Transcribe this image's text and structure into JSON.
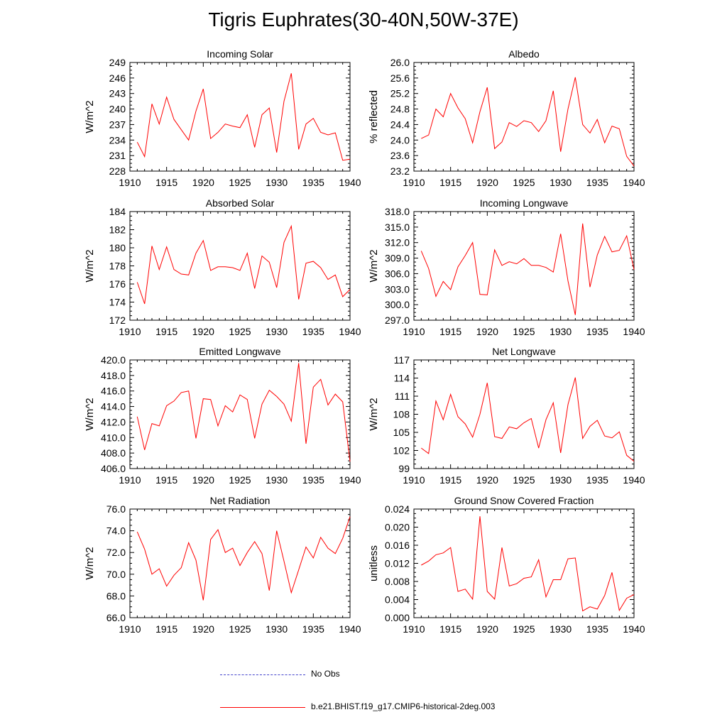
{
  "page": {
    "title": "Tigris Euphrates(30-40N,50W-37E)"
  },
  "legend": [
    {
      "label": "No Obs",
      "color": "#4444cc",
      "dash": "dashed"
    },
    {
      "label": "b.e21.BHIST.f19_g17.CMIP6-historical-2deg.003",
      "color": "#ff0000",
      "dash": "solid"
    }
  ],
  "chart_data": [
    {
      "type": "line",
      "title": "Incoming Solar",
      "xlabel": "",
      "ylabel": "W/m^2",
      "xlim": [
        1910,
        1940
      ],
      "ylim": [
        228,
        249
      ],
      "xticks": [
        "1910",
        "1915",
        "1920",
        "1925",
        "1930",
        "1935",
        "1940"
      ],
      "yticks": [
        "228",
        "231",
        "234",
        "237",
        "240",
        "243",
        "246",
        "249"
      ],
      "series": [
        {
          "color": "#ff0000",
          "x": [
            1911,
            1912,
            1913,
            1914,
            1915,
            1916,
            1917,
            1918,
            1919,
            1920,
            1921,
            1922,
            1923,
            1924,
            1925,
            1926,
            1927,
            1928,
            1929,
            1930,
            1931,
            1932,
            1933,
            1934,
            1935,
            1936,
            1937,
            1938,
            1939,
            1940
          ],
          "values": [
            233.6,
            230.8,
            241.0,
            237.1,
            242.3,
            238.0,
            236.0,
            234.0,
            239.6,
            243.9,
            234.3,
            235.5,
            237.1,
            236.7,
            236.4,
            238.9,
            232.6,
            238.9,
            240.2,
            231.6,
            241.5,
            246.9,
            232.2,
            237.1,
            238.2,
            235.5,
            235.0,
            235.4,
            230.1,
            230.3
          ]
        }
      ]
    },
    {
      "type": "line",
      "title": "Albedo",
      "xlabel": "",
      "ylabel": "% reflected",
      "xlim": [
        1910,
        1940
      ],
      "ylim": [
        23.2,
        26.0
      ],
      "xticks": [
        "1910",
        "1915",
        "1920",
        "1925",
        "1930",
        "1935",
        "1940"
      ],
      "yticks": [
        "23.2",
        "23.6",
        "24.0",
        "24.4",
        "24.8",
        "25.2",
        "25.6",
        "26.0"
      ],
      "series": [
        {
          "color": "#ff0000",
          "x": [
            1911,
            1912,
            1913,
            1914,
            1915,
            1916,
            1917,
            1918,
            1919,
            1920,
            1921,
            1922,
            1923,
            1924,
            1925,
            1926,
            1927,
            1928,
            1929,
            1930,
            1931,
            1932,
            1933,
            1934,
            1935,
            1936,
            1937,
            1938,
            1939,
            1940
          ],
          "values": [
            24.04,
            24.13,
            24.8,
            24.6,
            25.2,
            24.83,
            24.55,
            23.93,
            24.73,
            25.36,
            23.78,
            23.95,
            24.45,
            24.35,
            24.5,
            24.45,
            24.22,
            24.5,
            25.27,
            23.7,
            24.8,
            25.62,
            24.4,
            24.18,
            24.53,
            23.93,
            24.36,
            24.29,
            23.58,
            23.33
          ]
        }
      ]
    },
    {
      "type": "line",
      "title": "Absorbed Solar",
      "xlabel": "",
      "ylabel": "W/m^2",
      "xlim": [
        1910,
        1940
      ],
      "ylim": [
        172,
        184
      ],
      "xticks": [
        "1910",
        "1915",
        "1920",
        "1925",
        "1930",
        "1935",
        "1940"
      ],
      "yticks": [
        "172",
        "174",
        "176",
        "178",
        "180",
        "182",
        "184"
      ],
      "series": [
        {
          "color": "#ff0000",
          "x": [
            1911,
            1912,
            1913,
            1914,
            1915,
            1916,
            1917,
            1918,
            1919,
            1920,
            1921,
            1922,
            1923,
            1924,
            1925,
            1926,
            1927,
            1928,
            1929,
            1930,
            1931,
            1932,
            1933,
            1934,
            1935,
            1936,
            1937,
            1938,
            1939,
            1940
          ],
          "values": [
            176.2,
            173.8,
            180.2,
            177.6,
            180.1,
            177.6,
            177.1,
            177.0,
            179.4,
            180.8,
            177.5,
            177.9,
            177.9,
            177.8,
            177.5,
            179.4,
            175.5,
            179.1,
            178.4,
            175.6,
            180.6,
            182.4,
            174.3,
            178.3,
            178.5,
            177.8,
            176.5,
            177.0,
            174.6,
            175.4
          ]
        }
      ]
    },
    {
      "type": "line",
      "title": "Incoming Longwave",
      "xlabel": "",
      "ylabel": "W/m^2",
      "xlim": [
        1910,
        1940
      ],
      "ylim": [
        297.0,
        318.0
      ],
      "xticks": [
        "1910",
        "1915",
        "1920",
        "1925",
        "1930",
        "1935",
        "1940"
      ],
      "yticks": [
        "297.0",
        "300.0",
        "303.0",
        "306.0",
        "309.0",
        "312.0",
        "315.0",
        "318.0"
      ],
      "series": [
        {
          "color": "#ff0000",
          "x": [
            1911,
            1912,
            1913,
            1914,
            1915,
            1916,
            1917,
            1918,
            1919,
            1920,
            1921,
            1922,
            1923,
            1924,
            1925,
            1926,
            1927,
            1928,
            1929,
            1930,
            1931,
            1932,
            1933,
            1934,
            1935,
            1936,
            1937,
            1938,
            1939,
            1940
          ],
          "values": [
            310.4,
            307.0,
            301.6,
            304.5,
            302.9,
            307.3,
            309.5,
            312.0,
            302.0,
            301.9,
            310.6,
            307.6,
            308.3,
            307.9,
            308.9,
            307.6,
            307.6,
            307.2,
            306.3,
            313.7,
            304.6,
            298.0,
            315.7,
            303.4,
            309.6,
            313.2,
            310.2,
            310.5,
            313.3,
            306.8
          ]
        }
      ]
    },
    {
      "type": "line",
      "title": "Emitted Longwave",
      "xlabel": "",
      "ylabel": "W/m^2",
      "xlim": [
        1910,
        1940
      ],
      "ylim": [
        406.0,
        420.0
      ],
      "xticks": [
        "1910",
        "1915",
        "1920",
        "1925",
        "1930",
        "1935",
        "1940"
      ],
      "yticks": [
        "406.0",
        "408.0",
        "410.0",
        "412.0",
        "414.0",
        "416.0",
        "418.0",
        "420.0"
      ],
      "series": [
        {
          "color": "#ff0000",
          "x": [
            1911,
            1912,
            1913,
            1914,
            1915,
            1916,
            1917,
            1918,
            1919,
            1920,
            1921,
            1922,
            1923,
            1924,
            1925,
            1926,
            1927,
            1928,
            1929,
            1930,
            1931,
            1932,
            1933,
            1934,
            1935,
            1936,
            1937,
            1938,
            1939,
            1940
          ],
          "values": [
            412.7,
            408.4,
            411.8,
            411.5,
            414.1,
            414.7,
            415.8,
            416.0,
            409.9,
            415.0,
            414.9,
            411.5,
            414.1,
            413.3,
            415.5,
            414.9,
            409.9,
            414.3,
            416.1,
            415.3,
            414.3,
            412.1,
            419.6,
            409.2,
            416.5,
            417.5,
            414.2,
            415.6,
            414.6,
            406.9
          ]
        }
      ]
    },
    {
      "type": "line",
      "title": "Net Longwave",
      "xlabel": "",
      "ylabel": "W/m^2",
      "xlim": [
        1910,
        1940
      ],
      "ylim": [
        99,
        117
      ],
      "xticks": [
        "1910",
        "1915",
        "1920",
        "1925",
        "1930",
        "1935",
        "1940"
      ],
      "yticks": [
        "99",
        "102",
        "105",
        "108",
        "111",
        "114",
        "117"
      ],
      "series": [
        {
          "color": "#ff0000",
          "x": [
            1911,
            1912,
            1913,
            1914,
            1915,
            1916,
            1917,
            1918,
            1919,
            1920,
            1921,
            1922,
            1923,
            1924,
            1925,
            1926,
            1927,
            1928,
            1929,
            1930,
            1931,
            1932,
            1933,
            1934,
            1935,
            1936,
            1937,
            1938,
            1939,
            1940
          ],
          "values": [
            102.4,
            101.5,
            110.2,
            107.1,
            111.3,
            107.6,
            106.4,
            104.2,
            108.0,
            113.2,
            104.3,
            104.0,
            105.9,
            105.6,
            106.6,
            107.3,
            102.4,
            107.1,
            109.9,
            101.6,
            109.6,
            114.1,
            104.0,
            106.0,
            107.0,
            104.4,
            104.1,
            105.1,
            101.2,
            100.2
          ]
        }
      ]
    },
    {
      "type": "line",
      "title": "Net Radiation",
      "xlabel": "",
      "ylabel": "W/m^2",
      "xlim": [
        1910,
        1940
      ],
      "ylim": [
        66.0,
        76.0
      ],
      "xticks": [
        "1910",
        "1915",
        "1920",
        "1925",
        "1930",
        "1935",
        "1940"
      ],
      "yticks": [
        "66.0",
        "68.0",
        "70.0",
        "72.0",
        "74.0",
        "76.0"
      ],
      "series": [
        {
          "color": "#ff0000",
          "x": [
            1911,
            1912,
            1913,
            1914,
            1915,
            1916,
            1917,
            1918,
            1919,
            1920,
            1921,
            1922,
            1923,
            1924,
            1925,
            1926,
            1927,
            1928,
            1929,
            1930,
            1931,
            1932,
            1933,
            1934,
            1935,
            1936,
            1937,
            1938,
            1939,
            1940
          ],
          "values": [
            73.9,
            72.3,
            70.0,
            70.5,
            68.9,
            69.9,
            70.6,
            72.9,
            71.3,
            67.6,
            73.2,
            74.1,
            72.0,
            72.4,
            70.8,
            72.0,
            73.0,
            71.9,
            68.5,
            74.0,
            71.2,
            68.3,
            70.4,
            72.5,
            71.5,
            73.4,
            72.4,
            71.9,
            73.3,
            75.3
          ]
        }
      ]
    },
    {
      "type": "line",
      "title": "Ground Snow Covered Fraction",
      "xlabel": "",
      "ylabel": "unitless",
      "xlim": [
        1910,
        1940
      ],
      "ylim": [
        0.0,
        0.024
      ],
      "xticks": [
        "1910",
        "1915",
        "1920",
        "1925",
        "1930",
        "1935",
        "1940"
      ],
      "yticks": [
        "0.000",
        "0.004",
        "0.008",
        "0.012",
        "0.016",
        "0.020",
        "0.024"
      ],
      "series": [
        {
          "color": "#ff0000",
          "x": [
            1911,
            1912,
            1913,
            1914,
            1915,
            1916,
            1917,
            1918,
            1919,
            1920,
            1921,
            1922,
            1923,
            1924,
            1925,
            1926,
            1927,
            1928,
            1929,
            1930,
            1931,
            1932,
            1933,
            1934,
            1935,
            1936,
            1937,
            1938,
            1939,
            1940
          ],
          "values": [
            0.0116,
            0.0125,
            0.0139,
            0.0143,
            0.0155,
            0.0058,
            0.0063,
            0.0041,
            0.0224,
            0.0058,
            0.0041,
            0.0155,
            0.007,
            0.0075,
            0.0087,
            0.009,
            0.0128,
            0.0046,
            0.0084,
            0.0084,
            0.013,
            0.0132,
            0.0015,
            0.0024,
            0.0019,
            0.0049,
            0.01,
            0.0016,
            0.0043,
            0.0051
          ]
        }
      ]
    }
  ]
}
